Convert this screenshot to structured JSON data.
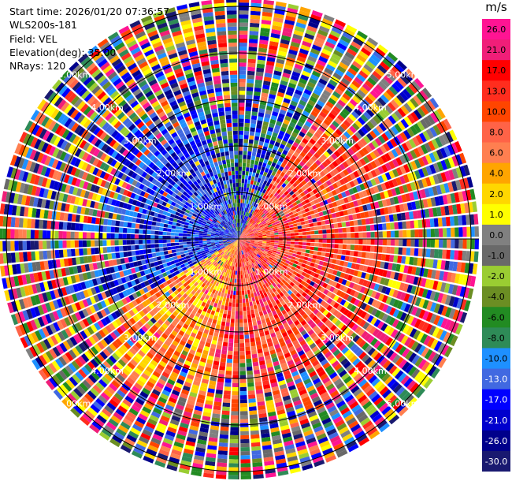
{
  "header": {
    "start_time": "Start time: 2026/01/20 07:36:57",
    "instrument": "WLS200s-181",
    "field": "Field: VEL",
    "elevation": "Elevation(deg): 35.00",
    "nrays": "NRays: 120"
  },
  "colorbar": {
    "unit": "m/s",
    "ticks": [
      "26.0",
      "21.0",
      "17.0",
      "13.0",
      "10.0",
      "8.0",
      "6.0",
      "4.0",
      "2.0",
      "1.0",
      "0.0",
      "-1.0",
      "-2.0",
      "-4.0",
      "-6.0",
      "-8.0",
      "-10.0",
      "-13.0",
      "-17.0",
      "-21.0",
      "-26.0",
      "-30.0"
    ],
    "colors": [
      "#ff1493",
      "#f01e78",
      "#ff0000",
      "#ff2d1e",
      "#ff4500",
      "#ff6347",
      "#ff7f50",
      "#ffa500",
      "#ffd700",
      "#ffff00",
      "#808080",
      "#696969",
      "#9acd32",
      "#6b8e23",
      "#228b22",
      "#2e8b57",
      "#1e90ff",
      "#4169e1",
      "#0000ff",
      "#0000cd",
      "#00008b",
      "#191970"
    ]
  },
  "ppi": {
    "range_labels": [
      "1.00km",
      "2.00km",
      "3.00km",
      "4.00km",
      "5.00km"
    ]
  }
}
